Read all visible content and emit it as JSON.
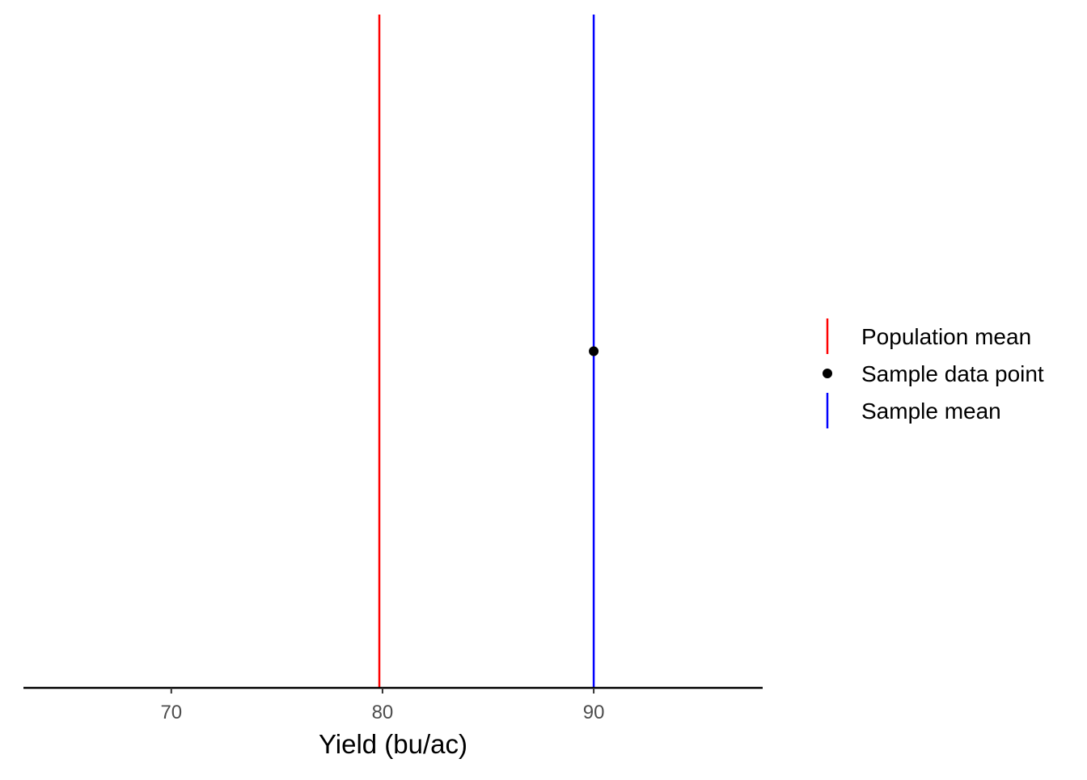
{
  "chart_data": {
    "type": "scatter",
    "xlabel": "Yield (bu/ac)",
    "ylabel": "",
    "xlim": [
      63,
      98
    ],
    "ylim": [
      0,
      1
    ],
    "x_ticks": [
      70,
      80,
      90
    ],
    "grid": false,
    "legend_position": "right",
    "series": [
      {
        "name": "Population mean",
        "kind": "vline",
        "x": 79.85,
        "color": "#ff0000"
      },
      {
        "name": "Sample data point",
        "kind": "point",
        "x": 90,
        "y": 0.5,
        "color": "#000000"
      },
      {
        "name": "Sample mean",
        "kind": "vline",
        "x": 90,
        "color": "#0000ff"
      }
    ]
  }
}
